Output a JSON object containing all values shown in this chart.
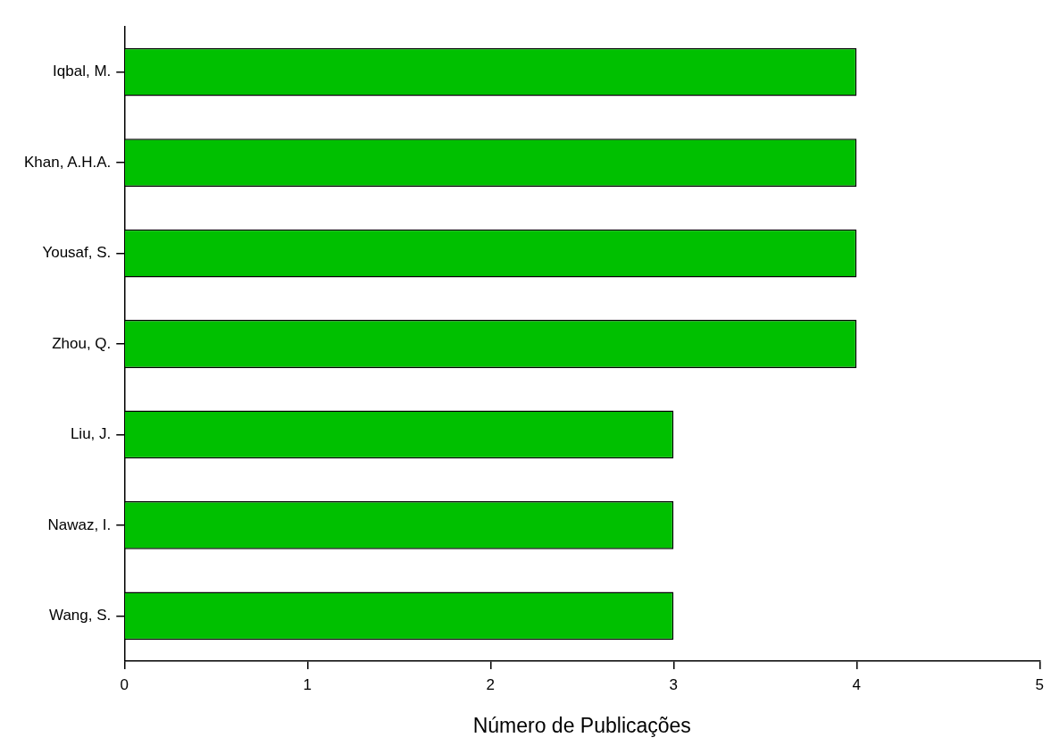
{
  "chart_data": {
    "type": "bar",
    "orientation": "horizontal",
    "xlabel": "Número de Publicações",
    "categories": [
      "Iqbal, M.",
      "Khan, A.H.A.",
      "Yousaf, S.",
      "Zhou, Q.",
      "Liu, J.",
      "Nawaz, I.",
      "Wang, S."
    ],
    "values": [
      4,
      4,
      4,
      4,
      3,
      3,
      3
    ],
    "color": "#00c000",
    "xlim": [
      0,
      5
    ],
    "xticks": [
      0,
      1,
      2,
      3,
      4,
      5
    ],
    "grid": false,
    "legend": false
  }
}
